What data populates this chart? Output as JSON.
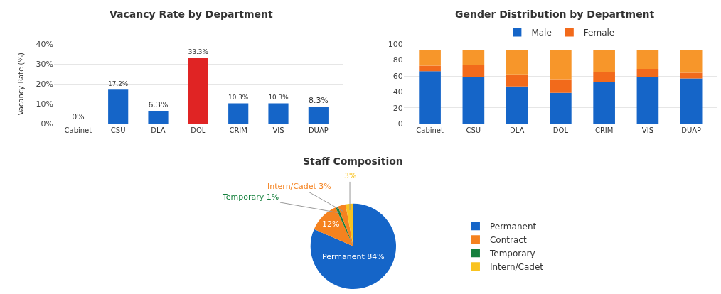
{
  "chart_data": [
    {
      "type": "bar",
      "title": "Vacancy Rate by Department",
      "ylabel": "Vacancy Rate (%)",
      "categories": [
        "Cabinet",
        "CSU",
        "DLA",
        "DOL",
        "CRIM",
        "VIS",
        "DUAP"
      ],
      "values": [
        0,
        17.2,
        6.3,
        33.3,
        10.3,
        10.3,
        8.3
      ],
      "colors": [
        "#1565c8",
        "#1565c8",
        "#1565c8",
        "#e02424",
        "#1565c8",
        "#1565c8",
        "#1565c8"
      ],
      "value_labels": [
        "0%",
        "17.2%",
        "6.3%",
        "33.3%",
        "10.3%",
        "10.3%",
        "8.3%"
      ],
      "ylim": [
        0,
        40
      ],
      "yticks": [
        {
          "value": 0,
          "label": "0%"
        },
        {
          "value": 10,
          "label": "10%"
        },
        {
          "value": 20,
          "label": "20%"
        },
        {
          "value": 30,
          "label": "30%"
        },
        {
          "value": 40,
          "label": "40%"
        }
      ],
      "grid": "y",
      "legend": false
    },
    {
      "type": "bar",
      "title": "Gender Distribution by Department",
      "stacked": true,
      "categories": [
        "Cabinet",
        "CSU",
        "DLA",
        "DOL",
        "CRIM",
        "VIS",
        "DUAP"
      ],
      "series": [
        {
          "name": "Male",
          "color": "#1565c8",
          "values": [
            66,
            59,
            47,
            39,
            53,
            59,
            57
          ]
        },
        {
          "name": "Female",
          "color": "#f26a1b",
          "values": [
            7,
            15,
            15,
            17,
            12,
            10,
            7
          ]
        },
        {
          "color": "#f7962a",
          "values": [
            20,
            19,
            31,
            37,
            28,
            24,
            29
          ]
        }
      ],
      "ylim": [
        0,
        100
      ],
      "yticks": [
        0,
        20,
        40,
        60,
        80,
        100
      ],
      "grid": "y",
      "legend": "top"
    },
    {
      "type": "pie",
      "title": "Staff Composition",
      "categories": [
        "Permanent",
        "Contract",
        "Temporary",
        null,
        "Intern/Cadet"
      ],
      "values": [
        84,
        12,
        1,
        3,
        3
      ],
      "colors": [
        "#1565c8",
        "#f5821f",
        "#15803d",
        "#f5821f",
        "#f9c31f"
      ],
      "value_labels": [
        "Permanent 84%",
        "12%",
        "Temporary 1%",
        "Intern/Cadet 3%",
        "3%"
      ],
      "legend": "right"
    }
  ]
}
